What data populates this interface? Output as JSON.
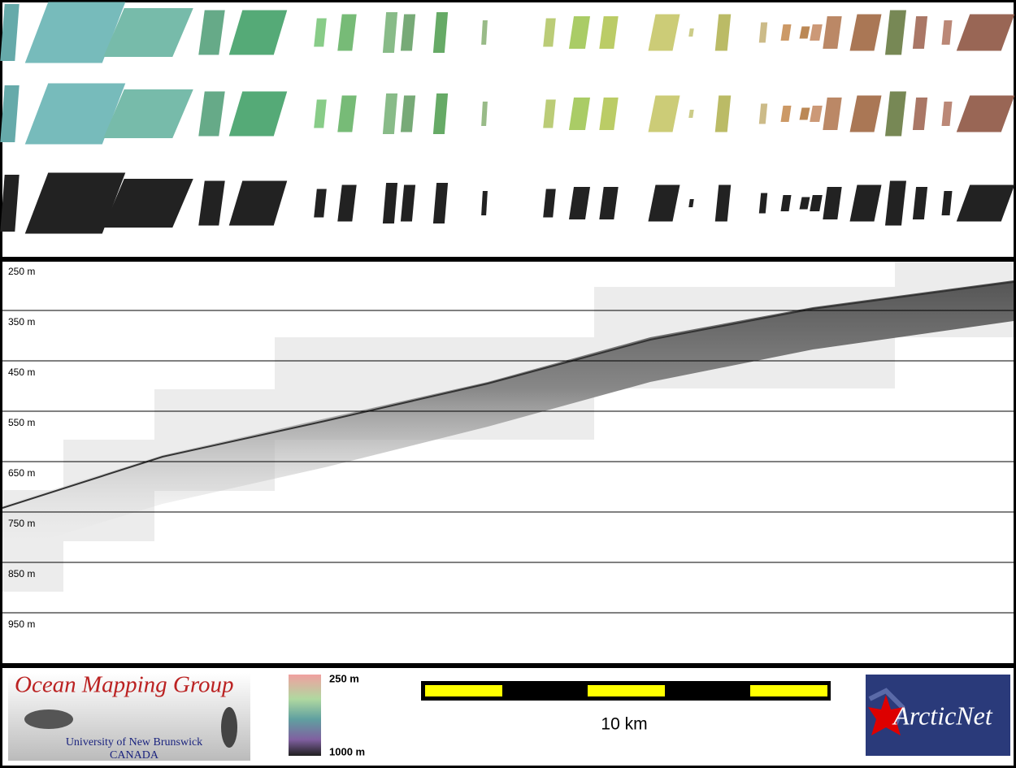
{
  "depth_labels": [
    "250 m",
    "350 m",
    "450 m",
    "550 m",
    "650 m",
    "750 m",
    "850 m",
    "950 m"
  ],
  "logo": {
    "title": "Ocean Mapping Group",
    "university": "University of New Brunswick",
    "country": "CANADA"
  },
  "colorbar": {
    "top": "250 m",
    "bottom": "1000 m"
  },
  "scale_bar": {
    "label": "10 km"
  },
  "partner_logo": {
    "text": "ArcticNet"
  }
}
